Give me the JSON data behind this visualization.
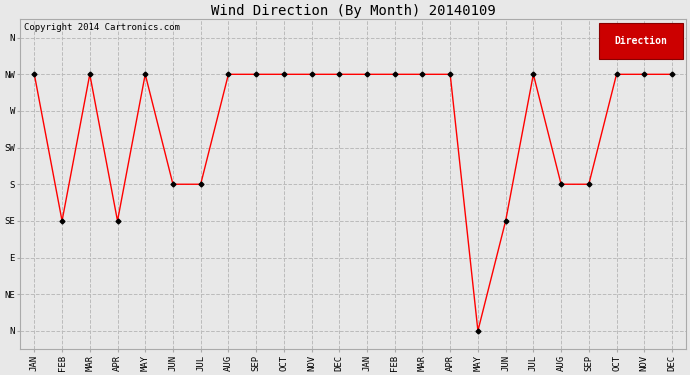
{
  "title": "Wind Direction (By Month) 20140109",
  "copyright": "Copyright 2014 Cartronics.com",
  "legend_label": "Direction",
  "legend_color": "#cc0000",
  "legend_text_color": "#ffffff",
  "x_labels": [
    "JAN",
    "FEB",
    "MAR",
    "APR",
    "MAY",
    "JUN",
    "JUL",
    "AUG",
    "SEP",
    "OCT",
    "NOV",
    "DEC",
    "JAN",
    "FEB",
    "MAR",
    "APR",
    "MAY",
    "JUN",
    "JUL",
    "AUG",
    "SEP",
    "OCT",
    "NOV",
    "DEC"
  ],
  "y_labels_top_to_bottom": [
    "N",
    "NW",
    "W",
    "SW",
    "S",
    "SE",
    "E",
    "NE",
    "N"
  ],
  "data_top_to_bottom": [
    1,
    5,
    1,
    5,
    1,
    4,
    4,
    1,
    1,
    1,
    1,
    1,
    1,
    1,
    1,
    1,
    8,
    5,
    1,
    4,
    4,
    1,
    1,
    1
  ],
  "line_color": "#ff0000",
  "marker_color": "#000000",
  "bg_color": "#e8e8e8",
  "grid_color": "#bbbbbb",
  "title_fontsize": 10,
  "tick_fontsize": 6.5,
  "copyright_fontsize": 6.5
}
